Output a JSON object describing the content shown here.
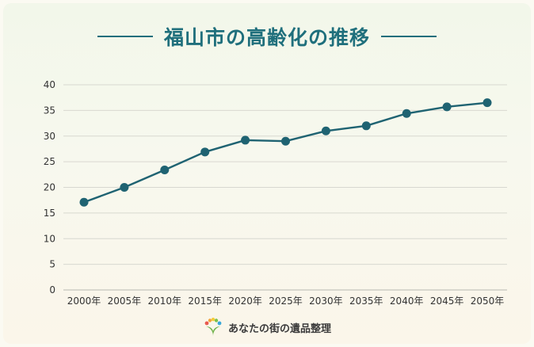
{
  "title": "福山市の高齢化の推移",
  "footer": {
    "brand": "あなたの街の遺品整理"
  },
  "colors": {
    "line": "#1f6372",
    "title": "#1f6f7c",
    "grid": "#d8d8d0",
    "axis": "#b8b8b0"
  },
  "chart_data": {
    "type": "line",
    "categories": [
      "2000年",
      "2005年",
      "2010年",
      "2015年",
      "2020年",
      "2025年",
      "2030年",
      "2035年",
      "2040年",
      "2045年",
      "2050年"
    ],
    "series": [
      {
        "values": [
          17.1,
          20.0,
          23.4,
          26.9,
          29.2,
          29.0,
          31.0,
          32.0,
          34.4,
          35.7,
          36.5
        ]
      }
    ],
    "yticks": [
      0,
      5,
      10,
      15,
      20,
      25,
      30,
      35,
      40
    ],
    "ylim": [
      0,
      40
    ],
    "grid": true
  }
}
